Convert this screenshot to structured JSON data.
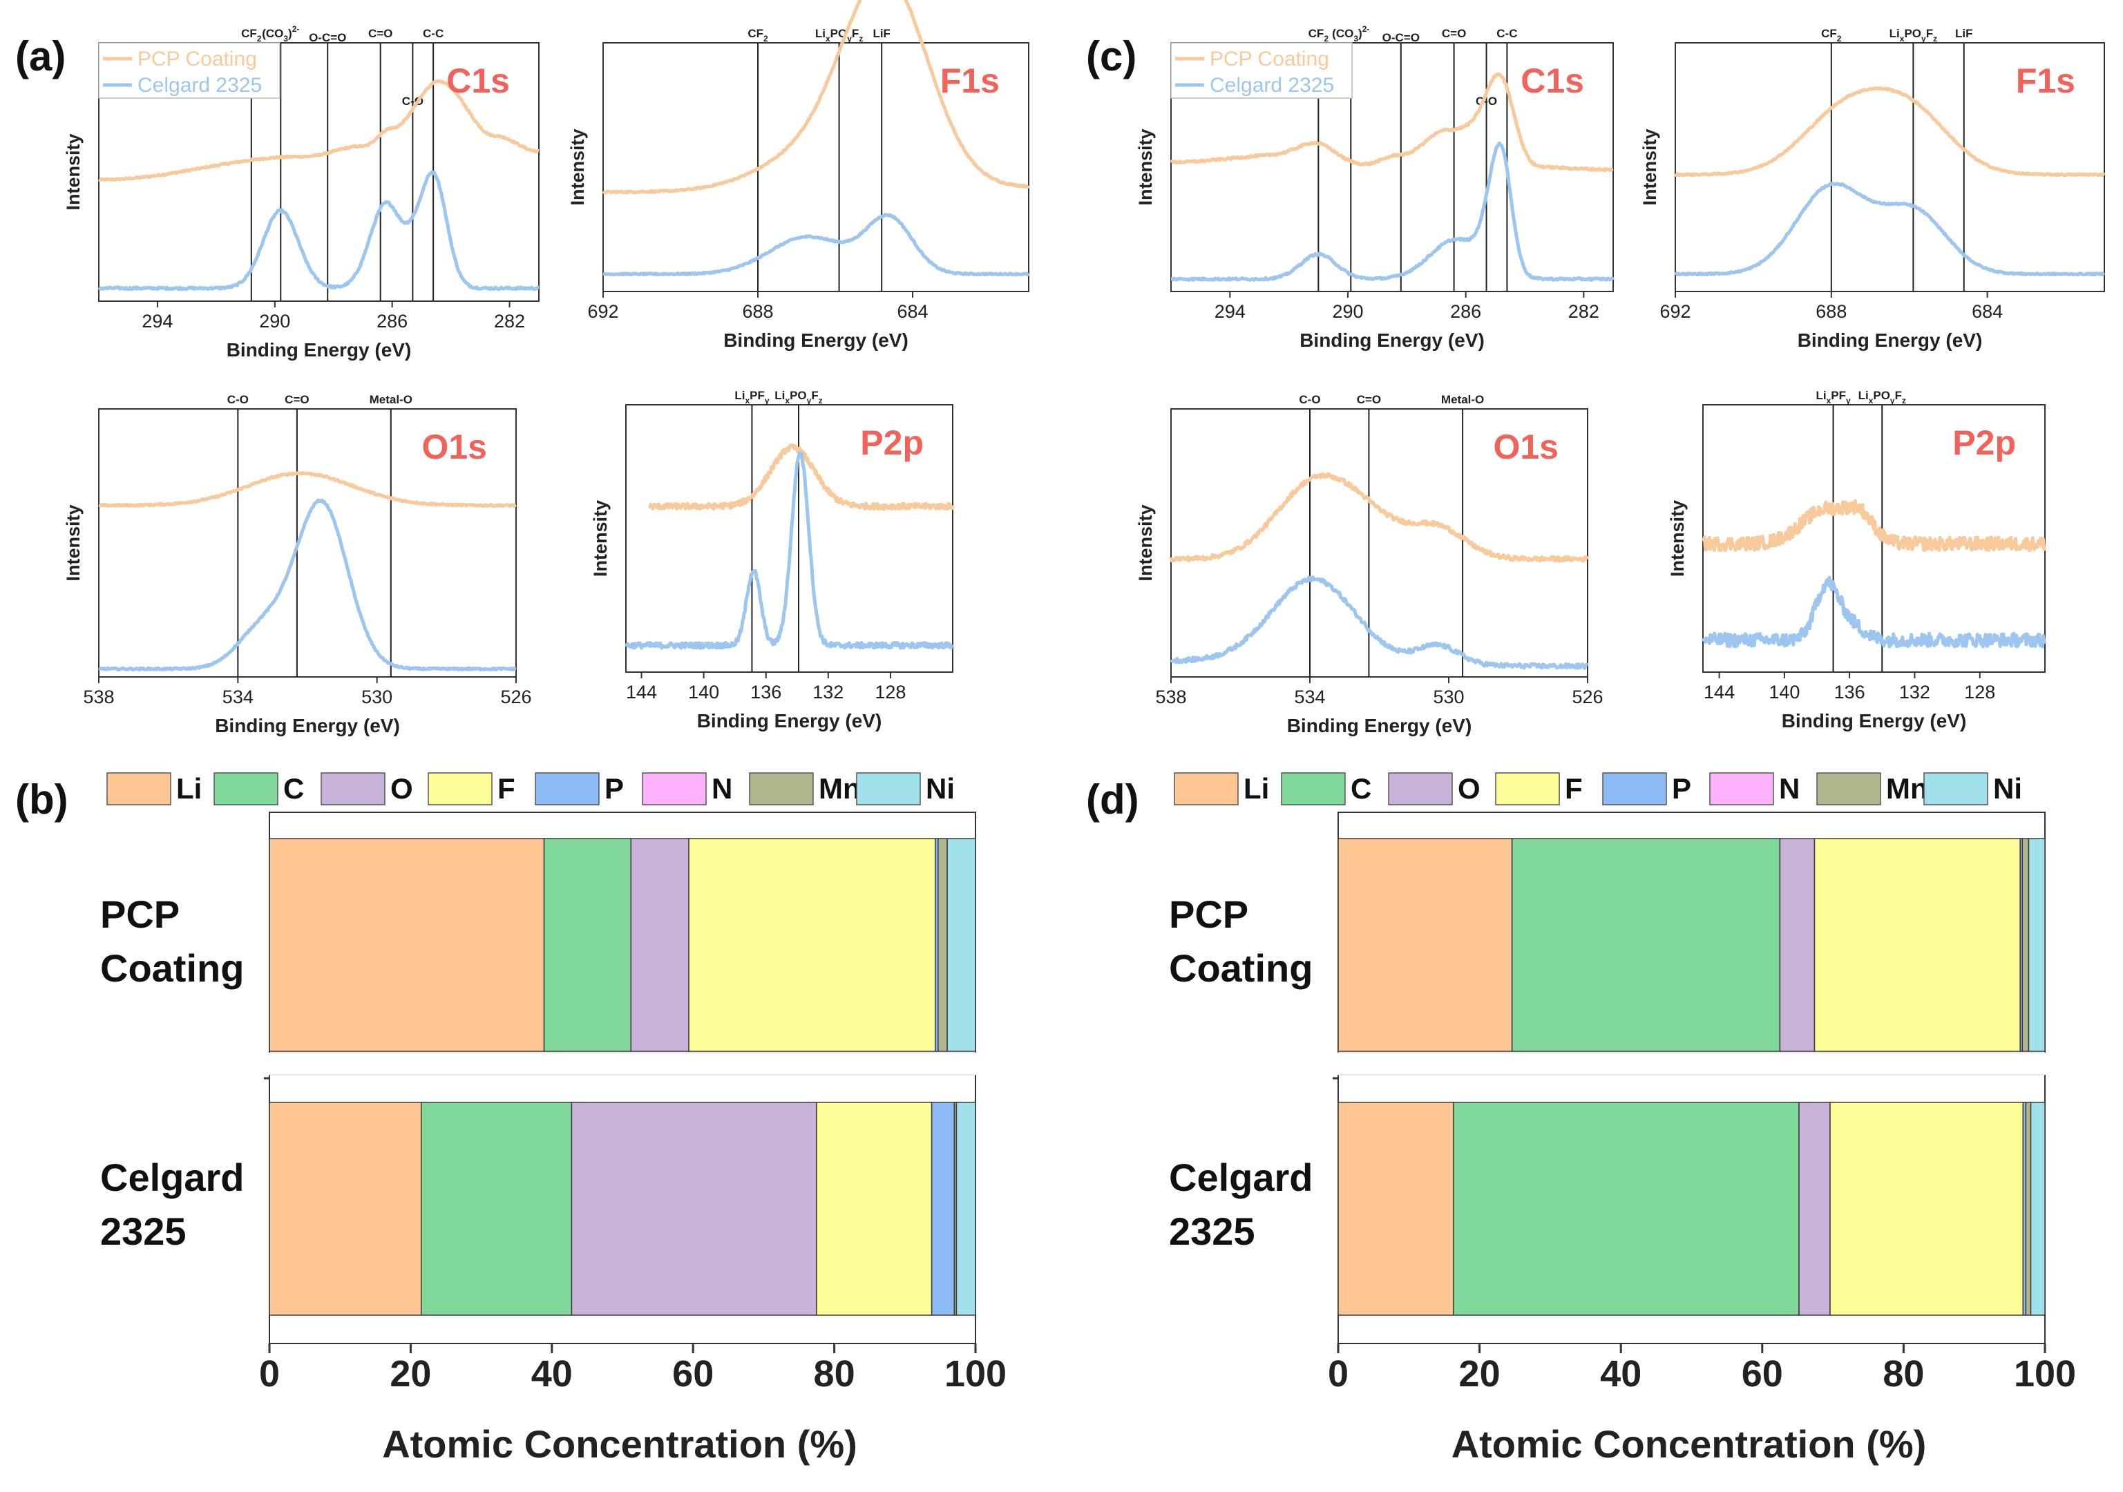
{
  "colors": {
    "orange": "#F8C99A",
    "blue": "#9CC5F0",
    "frame": "#333333",
    "peak": "#F0625A",
    "Li": "#FDC693",
    "C": "#80D89B",
    "O": "#C9B2D9",
    "F": "#FEFE98",
    "P": "#8DBBF5",
    "N": "#FDB3FB",
    "Mn": "#B1B58E",
    "Ni": "#A1E1EC"
  },
  "common": {
    "ylabel": "Intensity",
    "xlabel": "Binding Energy (eV)",
    "series": [
      "PCP Coating",
      "Celgard 2325"
    ],
    "bar_xlabel": "Atomic Concentration (%)",
    "rows": [
      [
        "PCP",
        "Coating"
      ],
      [
        "Celgard",
        "2325"
      ]
    ]
  },
  "chart_data": [
    {
      "panel": "(a)",
      "type": "line",
      "title": "C1s",
      "xlim": [
        296,
        281
      ],
      "ticks": [
        294,
        290,
        286,
        282
      ],
      "refs": [
        {
          "x": 290.8,
          "label": "CF2"
        },
        {
          "x": 289.8,
          "label": "(CO3)2-"
        },
        {
          "x": 288.2,
          "label": "O-C=O"
        },
        {
          "x": 286.4,
          "label": "C=O"
        },
        {
          "x": 285.3,
          "label": "C-O"
        },
        {
          "x": 284.6,
          "label": "C-C"
        }
      ],
      "series": [
        {
          "name": "PCP Coating",
          "color": "orange",
          "noise": 0.003,
          "base": [
            [
              296,
              0.47
            ],
            [
              289,
              0.56
            ],
            [
              287,
              0.6
            ],
            [
              286,
              0.67
            ],
            [
              284.4,
              0.85
            ],
            [
              282.5,
              0.64
            ],
            [
              281,
              0.58
            ]
          ],
          "peaks": []
        },
        {
          "name": "Celgard 2325",
          "color": "blue",
          "noise": 0.004,
          "base": [
            [
              296,
              0.05
            ],
            [
              281,
              0.05
            ]
          ],
          "peaks": [
            [
              289.8,
              0.3,
              0.6
            ],
            [
              286.2,
              0.33,
              0.55
            ],
            [
              284.6,
              0.44,
              0.45
            ],
            [
              285.3,
              0.06,
              0.3
            ]
          ]
        }
      ]
    },
    {
      "panel": "(a)",
      "type": "line",
      "title": "F1s",
      "xlim": [
        692,
        681
      ],
      "ticks": [
        692,
        688,
        684
      ],
      "refs": [
        {
          "x": 688.0,
          "label": "CF2"
        },
        {
          "x": 685.9,
          "label": "LixPOyFz"
        },
        {
          "x": 684.8,
          "label": "LiF"
        }
      ],
      "series": [
        {
          "name": "PCP Coating",
          "color": "orange",
          "noise": 0.003,
          "base": [
            [
              692,
              0.4
            ],
            [
              681,
              0.42
            ]
          ],
          "peaks": [
            [
              684.7,
              0.83,
              1.1
            ],
            [
              686.8,
              0.12,
              1.3
            ]
          ]
        },
        {
          "name": "Celgard 2325",
          "color": "blue",
          "noise": 0.003,
          "base": [
            [
              692,
              0.07
            ],
            [
              681,
              0.07
            ]
          ],
          "peaks": [
            [
              686.7,
              0.15,
              1.0
            ],
            [
              684.6,
              0.22,
              0.6
            ]
          ]
        }
      ]
    },
    {
      "panel": "(a)",
      "type": "line",
      "title": "O1s",
      "xlim": [
        538,
        526
      ],
      "ticks": [
        538,
        534,
        530,
        526
      ],
      "refs": [
        {
          "x": 534.0,
          "label": "C-O"
        },
        {
          "x": 532.3,
          "label": "C=O"
        },
        {
          "x": 529.6,
          "label": "Metal-O"
        }
      ],
      "series": [
        {
          "name": "PCP Coating",
          "color": "orange",
          "noise": 0.003,
          "base": [
            [
              538,
              0.64
            ],
            [
              526,
              0.64
            ]
          ],
          "peaks": [
            [
              532.2,
              0.12,
              1.5
            ]
          ]
        },
        {
          "name": "Celgard 2325",
          "color": "blue",
          "noise": 0.003,
          "base": [
            [
              538,
              0.03
            ],
            [
              526,
              0.03
            ]
          ],
          "peaks": [
            [
              531.6,
              0.62,
              0.75
            ],
            [
              533.3,
              0.15,
              0.7
            ]
          ]
        }
      ]
    },
    {
      "panel": "(a)",
      "type": "line",
      "title": "P2p",
      "xlim": [
        145,
        124
      ],
      "ticks": [
        144,
        140,
        136,
        132,
        128
      ],
      "refs": [
        {
          "x": 136.9,
          "label": "LixPFy"
        },
        {
          "x": 133.9,
          "label": "LixPOyFz"
        }
      ],
      "series": [
        {
          "name": "PCP Coating",
          "color": "orange",
          "noise": 0.01,
          "x_start": 143.5,
          "base": [
            [
              143.5,
              0.62
            ],
            [
              124,
              0.62
            ]
          ],
          "peaks": [
            [
              134.3,
              0.22,
              1.4
            ]
          ]
        },
        {
          "name": "Celgard 2325",
          "color": "blue",
          "noise": 0.01,
          "x_start": 145,
          "base": [
            [
              145,
              0.1
            ],
            [
              124,
              0.1
            ]
          ],
          "peaks": [
            [
              136.8,
              0.28,
              0.45
            ],
            [
              133.8,
              0.72,
              0.55
            ]
          ]
        }
      ]
    },
    {
      "panel": "(c)",
      "type": "line",
      "title": "C1s",
      "xlim": [
        296,
        281
      ],
      "ticks": [
        294,
        290,
        286,
        282
      ],
      "refs": [
        {
          "x": 291.0,
          "label": "CF2"
        },
        {
          "x": 289.9,
          "label": "(CO3)2-"
        },
        {
          "x": 288.2,
          "label": "O-C=O"
        },
        {
          "x": 286.4,
          "label": "C=O"
        },
        {
          "x": 285.3,
          "label": "C-O"
        },
        {
          "x": 284.6,
          "label": "C-C"
        }
      ],
      "series": [
        {
          "name": "PCP Coating",
          "color": "orange",
          "noise": 0.004,
          "base": [
            [
              296,
              0.52
            ],
            [
              292,
              0.55
            ],
            [
              289.5,
              0.51
            ],
            [
              288.2,
              0.55
            ],
            [
              286.6,
              0.65
            ],
            [
              285.4,
              0.67
            ],
            [
              283.6,
              0.5
            ],
            [
              281,
              0.49
            ]
          ],
          "peaks": [
            [
              291.0,
              0.06,
              0.6
            ],
            [
              284.8,
              0.24,
              0.45
            ]
          ]
        },
        {
          "name": "Celgard 2325",
          "color": "blue",
          "noise": 0.004,
          "base": [
            [
              296,
              0.05
            ],
            [
              281,
              0.05
            ]
          ],
          "peaks": [
            [
              291.0,
              0.1,
              0.6
            ],
            [
              286.3,
              0.16,
              0.9
            ],
            [
              284.8,
              0.48,
              0.35
            ],
            [
              285.3,
              0.08,
              0.3
            ]
          ]
        }
      ]
    },
    {
      "panel": "(c)",
      "type": "line",
      "title": "F1s",
      "xlim": [
        692,
        681
      ],
      "ticks": [
        692,
        688,
        684
      ],
      "refs": [
        {
          "x": 688.0,
          "label": "CF2"
        },
        {
          "x": 685.9,
          "label": "LixPOyFz"
        },
        {
          "x": 684.6,
          "label": "LiF"
        }
      ],
      "series": [
        {
          "name": "PCP Coating",
          "color": "orange",
          "noise": 0.003,
          "base": [
            [
              692,
              0.47
            ],
            [
              681,
              0.47
            ]
          ],
          "peaks": [
            [
              687.6,
              0.26,
              1.1
            ],
            [
              685.9,
              0.22,
              1.0
            ]
          ]
        },
        {
          "name": "Celgard 2325",
          "color": "blue",
          "noise": 0.003,
          "base": [
            [
              692,
              0.07
            ],
            [
              681,
              0.07
            ]
          ],
          "peaks": [
            [
              688.0,
              0.35,
              0.9
            ],
            [
              685.9,
              0.25,
              0.85
            ]
          ]
        }
      ]
    },
    {
      "panel": "(c)",
      "type": "line",
      "title": "O1s",
      "xlim": [
        538,
        526
      ],
      "ticks": [
        538,
        534,
        530,
        526
      ],
      "refs": [
        {
          "x": 534.0,
          "label": "C-O"
        },
        {
          "x": 532.3,
          "label": "C=O"
        },
        {
          "x": 529.6,
          "label": "Metal-O"
        }
      ],
      "series": [
        {
          "name": "PCP Coating",
          "color": "orange",
          "noise": 0.008,
          "base": [
            [
              538,
              0.44
            ],
            [
              526,
              0.44
            ]
          ],
          "peaks": [
            [
              533.9,
              0.27,
              1.1
            ],
            [
              532.3,
              0.12,
              1.0
            ],
            [
              530.3,
              0.11,
              0.8
            ]
          ]
        },
        {
          "name": "Celgard 2325",
          "color": "blue",
          "noise": 0.008,
          "base": [
            [
              538,
              0.06
            ],
            [
              526,
              0.04
            ]
          ],
          "peaks": [
            [
              533.9,
              0.31,
              1.2
            ],
            [
              530.3,
              0.07,
              0.6
            ]
          ]
        }
      ]
    },
    {
      "panel": "(c)",
      "type": "line",
      "title": "P2p",
      "xlim": [
        145,
        124
      ],
      "ticks": [
        144,
        140,
        136,
        132,
        128
      ],
      "refs": [
        {
          "x": 137.0,
          "label": "LixPFy"
        },
        {
          "x": 134.0,
          "label": "LixPOyFz"
        }
      ],
      "series": [
        {
          "name": "PCP Coating",
          "color": "orange",
          "noise": 0.025,
          "base": [
            [
              145,
              0.48
            ],
            [
              124,
              0.48
            ]
          ],
          "peaks": [
            [
              137.4,
              0.13,
              1.5
            ],
            [
              135.3,
              0.08,
              0.8
            ]
          ]
        },
        {
          "name": "Celgard 2325",
          "color": "blue",
          "noise": 0.025,
          "base": [
            [
              145,
              0.12
            ],
            [
              124,
              0.12
            ]
          ],
          "peaks": [
            [
              137.4,
              0.2,
              0.7
            ],
            [
              136.0,
              0.06,
              0.8
            ]
          ]
        }
      ]
    },
    {
      "panel": "(b)",
      "type": "bar",
      "stacked": true,
      "orientation": "horizontal",
      "xlim": [
        0,
        100
      ],
      "ticks": [
        0,
        20,
        40,
        60,
        80,
        100
      ],
      "legend": [
        "Li",
        "C",
        "O",
        "F",
        "P",
        "N",
        "Mn",
        "Ni"
      ],
      "categories": [
        "PCP Coating",
        "Celgard 2325"
      ],
      "series": [
        {
          "name": "Li",
          "values": [
            38.9,
            21.5
          ]
        },
        {
          "name": "C",
          "values": [
            12.3,
            21.3
          ]
        },
        {
          "name": "O",
          "values": [
            8.2,
            34.7
          ]
        },
        {
          "name": "F",
          "values": [
            34.9,
            16.3
          ]
        },
        {
          "name": "P",
          "values": [
            0.4,
            3.2
          ]
        },
        {
          "name": "N",
          "values": [
            0,
            0
          ]
        },
        {
          "name": "Mn",
          "values": [
            1.3,
            0.3
          ]
        },
        {
          "name": "Ni",
          "values": [
            4.0,
            2.7
          ]
        }
      ]
    },
    {
      "panel": "(d)",
      "type": "bar",
      "stacked": true,
      "orientation": "horizontal",
      "xlim": [
        0,
        100
      ],
      "ticks": [
        0,
        20,
        40,
        60,
        80,
        100
      ],
      "legend": [
        "Li",
        "C",
        "O",
        "F",
        "P",
        "N",
        "Mn",
        "Ni"
      ],
      "categories": [
        "PCP Coating",
        "Celgard 2325"
      ],
      "series": [
        {
          "name": "Li",
          "values": [
            24.6,
            16.3
          ]
        },
        {
          "name": "C",
          "values": [
            37.9,
            48.9
          ]
        },
        {
          "name": "O",
          "values": [
            4.9,
            4.4
          ]
        },
        {
          "name": "F",
          "values": [
            29.1,
            27.3
          ]
        },
        {
          "name": "P",
          "values": [
            0.3,
            0.4
          ]
        },
        {
          "name": "N",
          "values": [
            0,
            0
          ]
        },
        {
          "name": "Mn",
          "values": [
            0.9,
            0.7
          ]
        },
        {
          "name": "Ni",
          "values": [
            2.3,
            2.0
          ]
        }
      ]
    }
  ]
}
